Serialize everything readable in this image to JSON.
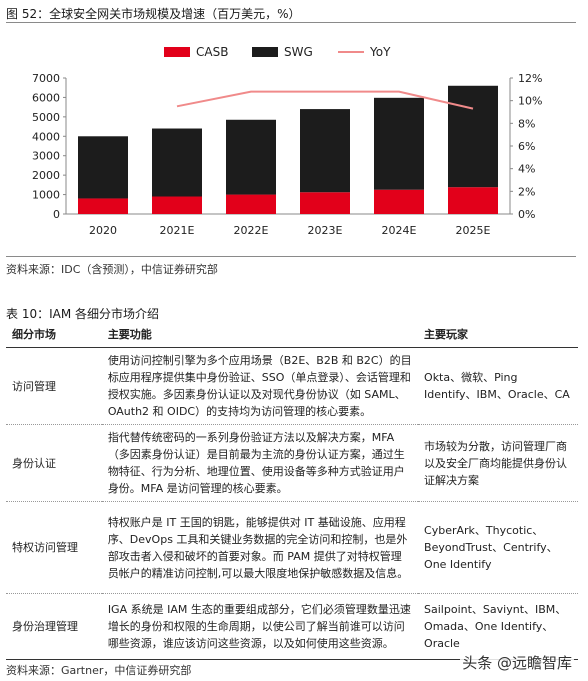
{
  "figure": {
    "title": "图 52：全球安全网关市场规模及增速（百万美元，%）",
    "source": "资料来源：IDC（含预测），中信证券研究部"
  },
  "chart_data": {
    "type": "bar",
    "stacked": true,
    "categories": [
      "2020",
      "2021E",
      "2022E",
      "2023E",
      "2024E",
      "2025E"
    ],
    "series": [
      {
        "name": "CASB",
        "type": "bar",
        "axis": "left",
        "color": "#e2001a",
        "values": [
          800,
          900,
          1000,
          1120,
          1250,
          1380
        ]
      },
      {
        "name": "SWG",
        "type": "bar",
        "axis": "left",
        "color": "#1c1c1c",
        "values": [
          3200,
          3500,
          3850,
          4280,
          4730,
          5220
        ]
      },
      {
        "name": "YoY",
        "type": "line",
        "axis": "right",
        "color": "#f08a8a",
        "values": [
          null,
          9.5,
          10.8,
          10.8,
          10.8,
          9.3
        ]
      }
    ],
    "ylim_left": [
      0,
      7000
    ],
    "yticks_left": [
      "0",
      "1000",
      "2000",
      "3000",
      "4000",
      "5000",
      "6000",
      "7000"
    ],
    "ylim_right": [
      0,
      12
    ],
    "yticks_right": [
      "0%",
      "2%",
      "4%",
      "6%",
      "8%",
      "10%",
      "12%"
    ],
    "legend": [
      "CASB",
      "SWG",
      "YoY"
    ],
    "legend_position": "top",
    "grid": false
  },
  "table": {
    "title": "表 10：IAM 各细分市场介绍",
    "headers": [
      "细分市场",
      "主要功能",
      "主要玩家"
    ],
    "rows": [
      {
        "market": "访问管理",
        "function": "使用访问控制引擎为多个应用场景（B2E、B2B 和 B2C）的目标应用程序提供集中身份验证、SSO（单点登录）、会话管理和授权实施。多因素身份认证以及对现代身份协议（如 SAML、OAuth2 和 OIDC）的支持均为访问管理的核心要素。",
        "players": "Okta、微软、Ping Identify、IBM、Oracle、CA"
      },
      {
        "market": "身份认证",
        "function": "指代替传统密码的一系列身份验证方法以及解决方案，MFA（多因素身份认证）是目前最为主流的身份认证方案，通过生物特征、行为分析、地理位置、使用设备等多种方式验证用户身份。MFA 是访问管理的核心要素。",
        "players": "市场较为分散，访问管理厂商以及安全厂商均能提供身份认证解决方案"
      },
      {
        "market": "特权访问管理",
        "function": "特权账户是 IT 王国的钥匙，能够提供对 IT 基础设施、应用程序、DevOps 工具和关键业务数据的完全访问和控制，也是外部攻击者入侵和破坏的首要对象。而 PAM 提供了对特权管理员帐户的精准访问控制,可以最大限度地保护敏感数据及信息。",
        "players": "CyberArk、Thycotic、BeyondTrust、Centrify、One Identify"
      },
      {
        "market": "身份治理管理",
        "function": "IGA 系统是 IAM 生态的重要组成部分，它们必须管理数量迅速增长的身份和权限的生命周期，以使公司了解当前谁可以访问哪些资源，谁应该访问这些资源，以及如何使用这些资源。",
        "players": "Sailpoint、Saviynt、IBM、Omada、One Identify、Oracle"
      }
    ],
    "source": "资料来源：Gartner，中信证券研究部"
  },
  "watermark": "头条 @远瞻智库"
}
